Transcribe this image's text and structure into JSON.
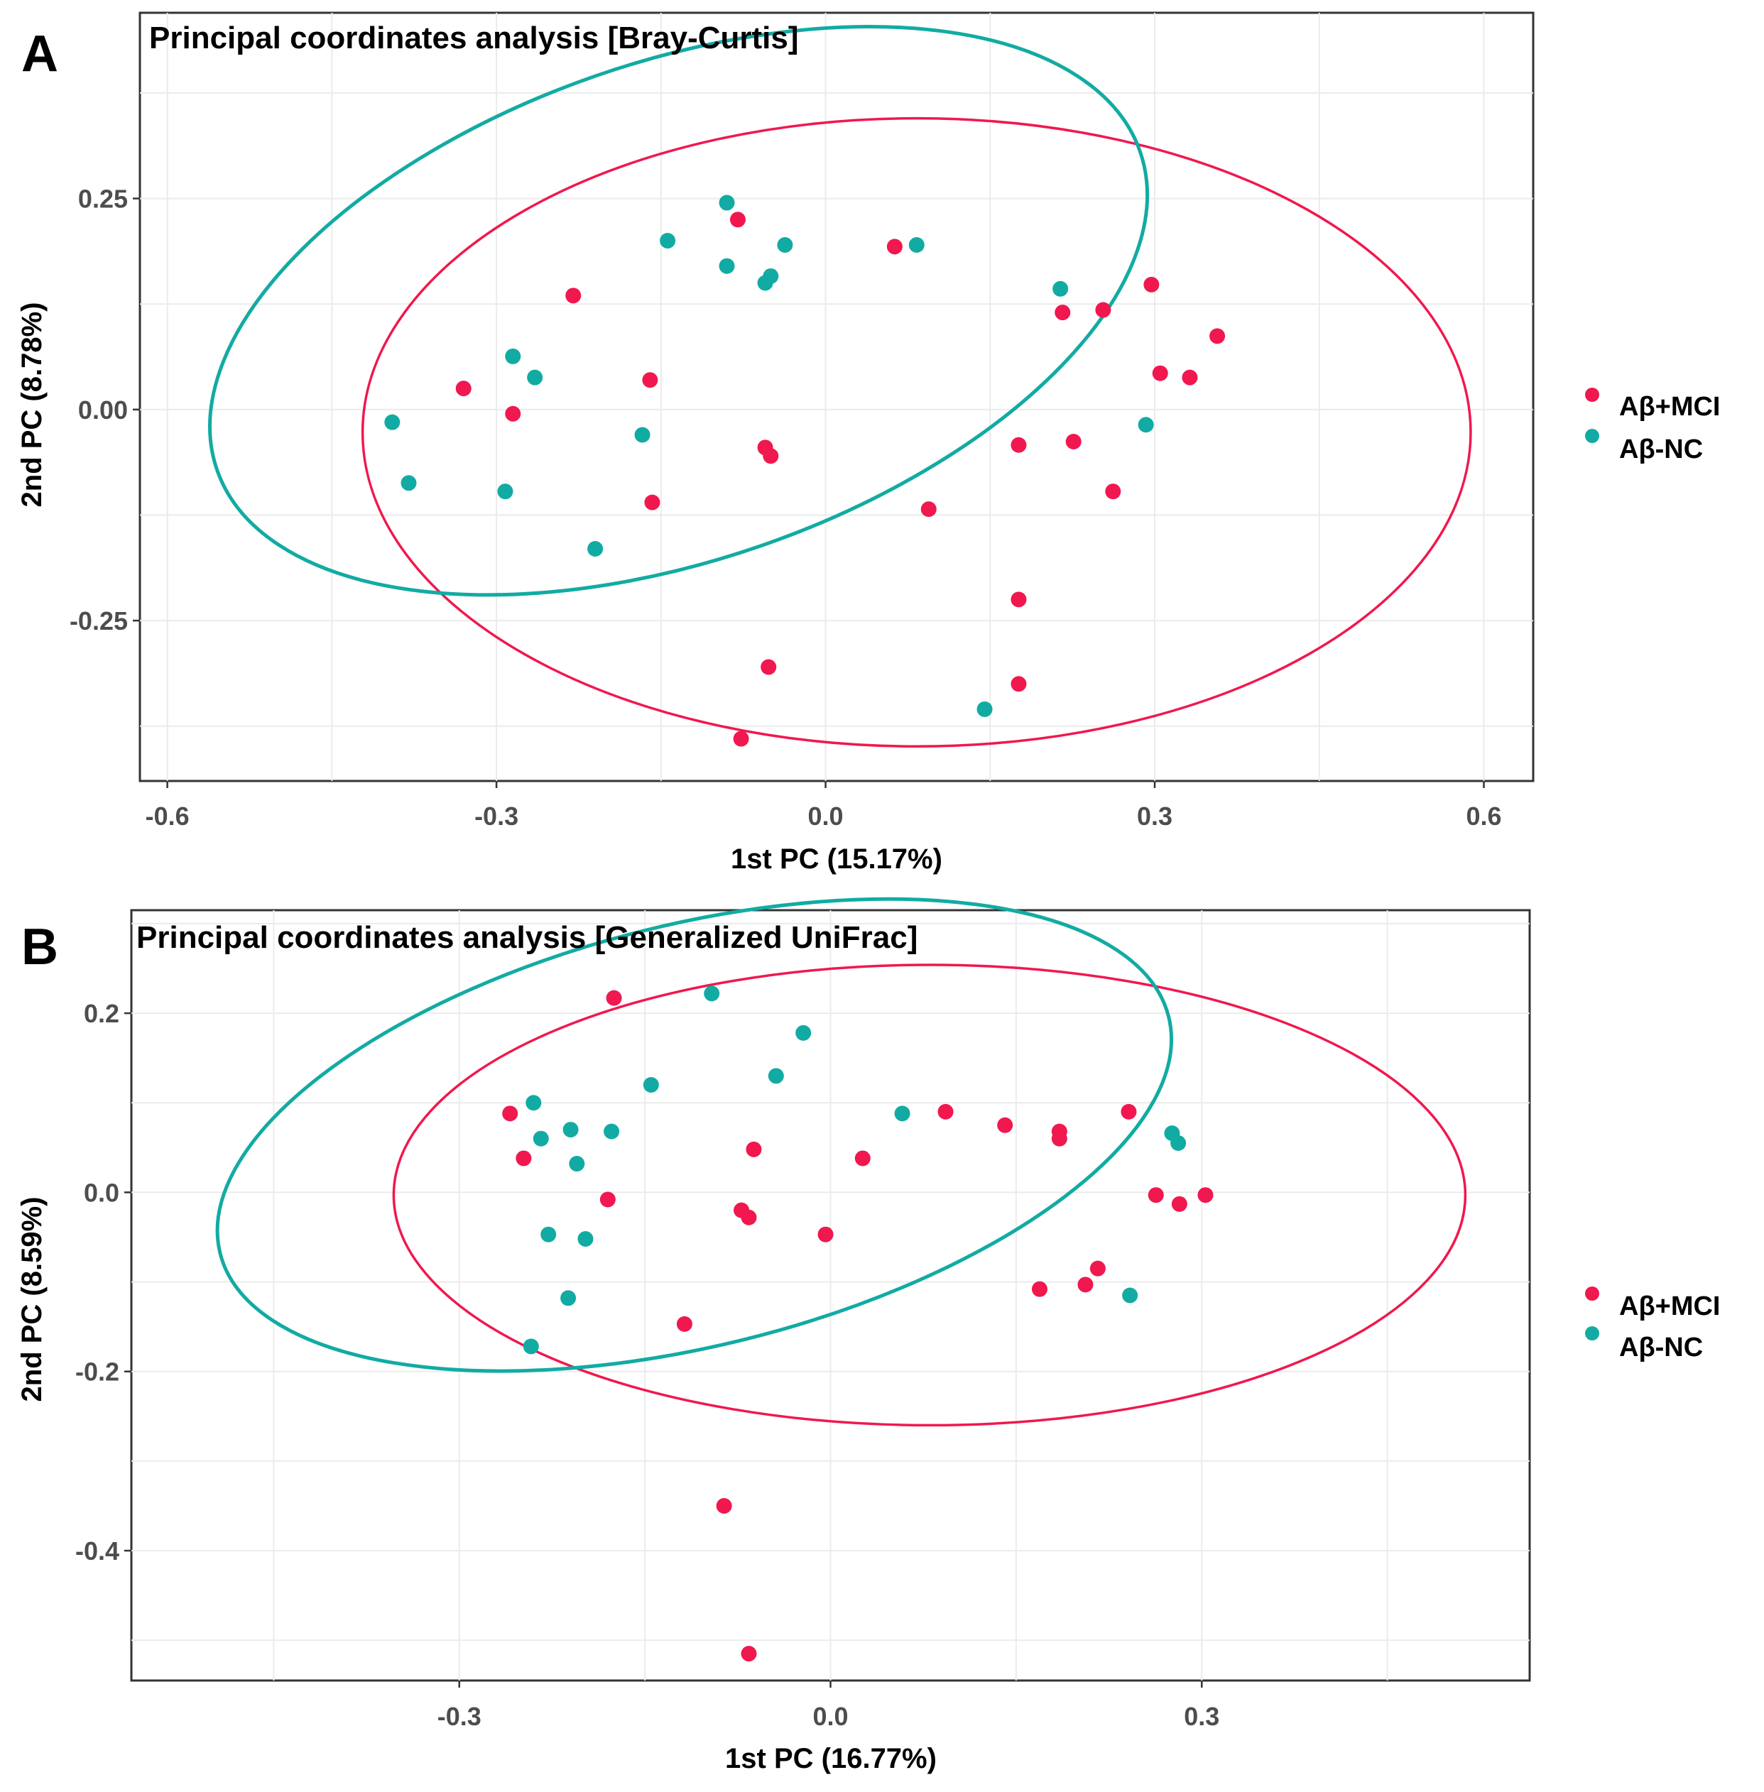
{
  "panels": [
    {
      "letter": "A",
      "title": "Principal coordinates analysis [Bray-Curtis]",
      "xlabel": "1st PC (15.17%)",
      "ylabel": "2nd PC (8.78%)",
      "xticks": [
        "-0.6",
        "-0.3",
        "0.0",
        "0.3",
        "0.6"
      ],
      "yticks": [
        "0.25",
        "0.00",
        "-0.25"
      ],
      "legend": [
        {
          "label": "Aβ+MCI",
          "color": "#f0184e"
        },
        {
          "label": "Aβ-NC",
          "color": "#12aba3"
        }
      ]
    },
    {
      "letter": "B",
      "title": "Principal coordinates analysis [Generalized UniFrac]",
      "xlabel": "1st PC (16.77%)",
      "ylabel": "2nd PC (8.59%)",
      "xticks": [
        "-0.3",
        "0.0",
        "0.3"
      ],
      "yticks": [
        "0.2",
        "0.0",
        "-0.2",
        "-0.4"
      ],
      "legend": [
        {
          "label": "Aβ+MCI",
          "color": "#f0184e"
        },
        {
          "label": "Aβ-NC",
          "color": "#12aba3"
        }
      ]
    }
  ],
  "chart_data": [
    {
      "type": "scatter",
      "title": "Principal coordinates analysis [Bray-Curtis]",
      "xlabel": "1st PC (15.17%)",
      "ylabel": "2nd PC (8.78%)",
      "xlim": [
        -0.625,
        0.645
      ],
      "ylim": [
        -0.44,
        0.47
      ],
      "xticks": [
        -0.6,
        -0.3,
        0.0,
        0.3,
        0.6
      ],
      "yticks": [
        0.25,
        0.0,
        -0.25
      ],
      "grid": true,
      "legend_position": "right",
      "series": [
        {
          "name": "Aβ+MCI",
          "color": "#f0184e",
          "points": [
            [
              -0.23,
              0.135
            ],
            [
              -0.33,
              0.025
            ],
            [
              -0.285,
              -0.005
            ],
            [
              -0.16,
              0.035
            ],
            [
              -0.158,
              -0.11
            ],
            [
              -0.08,
              0.225
            ],
            [
              -0.055,
              -0.045
            ],
            [
              -0.05,
              -0.055
            ],
            [
              -0.052,
              -0.305
            ],
            [
              -0.077,
              -0.39
            ],
            [
              0.063,
              0.193
            ],
            [
              0.094,
              -0.118
            ],
            [
              0.176,
              -0.042
            ],
            [
              0.176,
              -0.225
            ],
            [
              0.176,
              -0.325
            ],
            [
              0.216,
              0.115
            ],
            [
              0.226,
              -0.038
            ],
            [
              0.253,
              0.118
            ],
            [
              0.262,
              -0.097
            ],
            [
              0.297,
              0.148
            ],
            [
              0.305,
              0.043
            ],
            [
              0.332,
              0.038
            ],
            [
              0.357,
              0.087
            ]
          ],
          "ellipse": {
            "cx": 0.083,
            "cy": -0.027,
            "rx": 0.505,
            "ry": 0.372,
            "angle_deg": 0
          }
        },
        {
          "name": "Aβ-NC",
          "color": "#12aba3",
          "points": [
            [
              -0.395,
              -0.015
            ],
            [
              -0.38,
              -0.087
            ],
            [
              -0.285,
              0.063
            ],
            [
              -0.265,
              0.038
            ],
            [
              -0.292,
              -0.097
            ],
            [
              -0.21,
              -0.165
            ],
            [
              -0.167,
              -0.03
            ],
            [
              -0.144,
              0.2
            ],
            [
              -0.09,
              0.245
            ],
            [
              -0.09,
              0.17
            ],
            [
              -0.055,
              0.15
            ],
            [
              -0.05,
              0.158
            ],
            [
              -0.037,
              0.195
            ],
            [
              0.083,
              0.195
            ],
            [
              0.145,
              -0.355
            ],
            [
              0.214,
              0.143
            ],
            [
              0.292,
              -0.018
            ]
          ],
          "ellipse": {
            "cx": -0.134,
            "cy": 0.117,
            "rx": 0.445,
            "ry": 0.295,
            "angle_deg": 19
          }
        }
      ]
    },
    {
      "type": "scatter",
      "title": "Principal coordinates analysis [Generalized UniFrac]",
      "xlabel": "1st PC (16.77%)",
      "ylabel": "2nd PC (8.59%)",
      "xlim": [
        -0.565,
        0.565
      ],
      "ylim": [
        -0.545,
        0.315
      ],
      "xticks": [
        -0.3,
        0.0,
        0.3
      ],
      "yticks": [
        0.2,
        0.0,
        -0.2,
        -0.4
      ],
      "grid": true,
      "legend_position": "right",
      "series": [
        {
          "name": "Aβ+MCI",
          "color": "#f0184e",
          "points": [
            [
              -0.259,
              0.088
            ],
            [
              -0.248,
              0.038
            ],
            [
              -0.175,
              0.217
            ],
            [
              -0.18,
              -0.008
            ],
            [
              -0.118,
              -0.147
            ],
            [
              -0.086,
              -0.35
            ],
            [
              -0.062,
              0.048
            ],
            [
              -0.072,
              -0.02
            ],
            [
              -0.066,
              -0.028
            ],
            [
              -0.066,
              -0.515
            ],
            [
              -0.004,
              -0.047
            ],
            [
              0.026,
              0.038
            ],
            [
              0.093,
              0.09
            ],
            [
              0.141,
              0.075
            ],
            [
              0.169,
              -0.108
            ],
            [
              0.185,
              0.068
            ],
            [
              0.185,
              0.06
            ],
            [
              0.206,
              -0.103
            ],
            [
              0.216,
              -0.085
            ],
            [
              0.241,
              0.09
            ],
            [
              0.263,
              -0.003
            ],
            [
              0.282,
              -0.013
            ],
            [
              0.303,
              -0.003
            ]
          ],
          "ellipse": {
            "cx": 0.08,
            "cy": -0.003,
            "rx": 0.433,
            "ry": 0.257,
            "angle_deg": 0
          }
        },
        {
          "name": "Aβ-NC",
          "color": "#12aba3",
          "points": [
            [
              -0.24,
              0.1
            ],
            [
              -0.234,
              0.06
            ],
            [
              -0.21,
              0.07
            ],
            [
              -0.228,
              -0.047
            ],
            [
              -0.205,
              0.032
            ],
            [
              -0.198,
              -0.052
            ],
            [
              -0.212,
              -0.118
            ],
            [
              -0.242,
              -0.172
            ],
            [
              -0.177,
              0.068
            ],
            [
              -0.145,
              0.12
            ],
            [
              -0.096,
              0.222
            ],
            [
              -0.044,
              0.13
            ],
            [
              -0.022,
              0.178
            ],
            [
              0.058,
              0.088
            ],
            [
              0.242,
              -0.115
            ],
            [
              0.276,
              0.066
            ],
            [
              0.281,
              0.055
            ]
          ],
          "ellipse": {
            "cx": -0.11,
            "cy": 0.064,
            "rx": 0.395,
            "ry": 0.235,
            "angle_deg": 14
          }
        }
      ]
    }
  ]
}
